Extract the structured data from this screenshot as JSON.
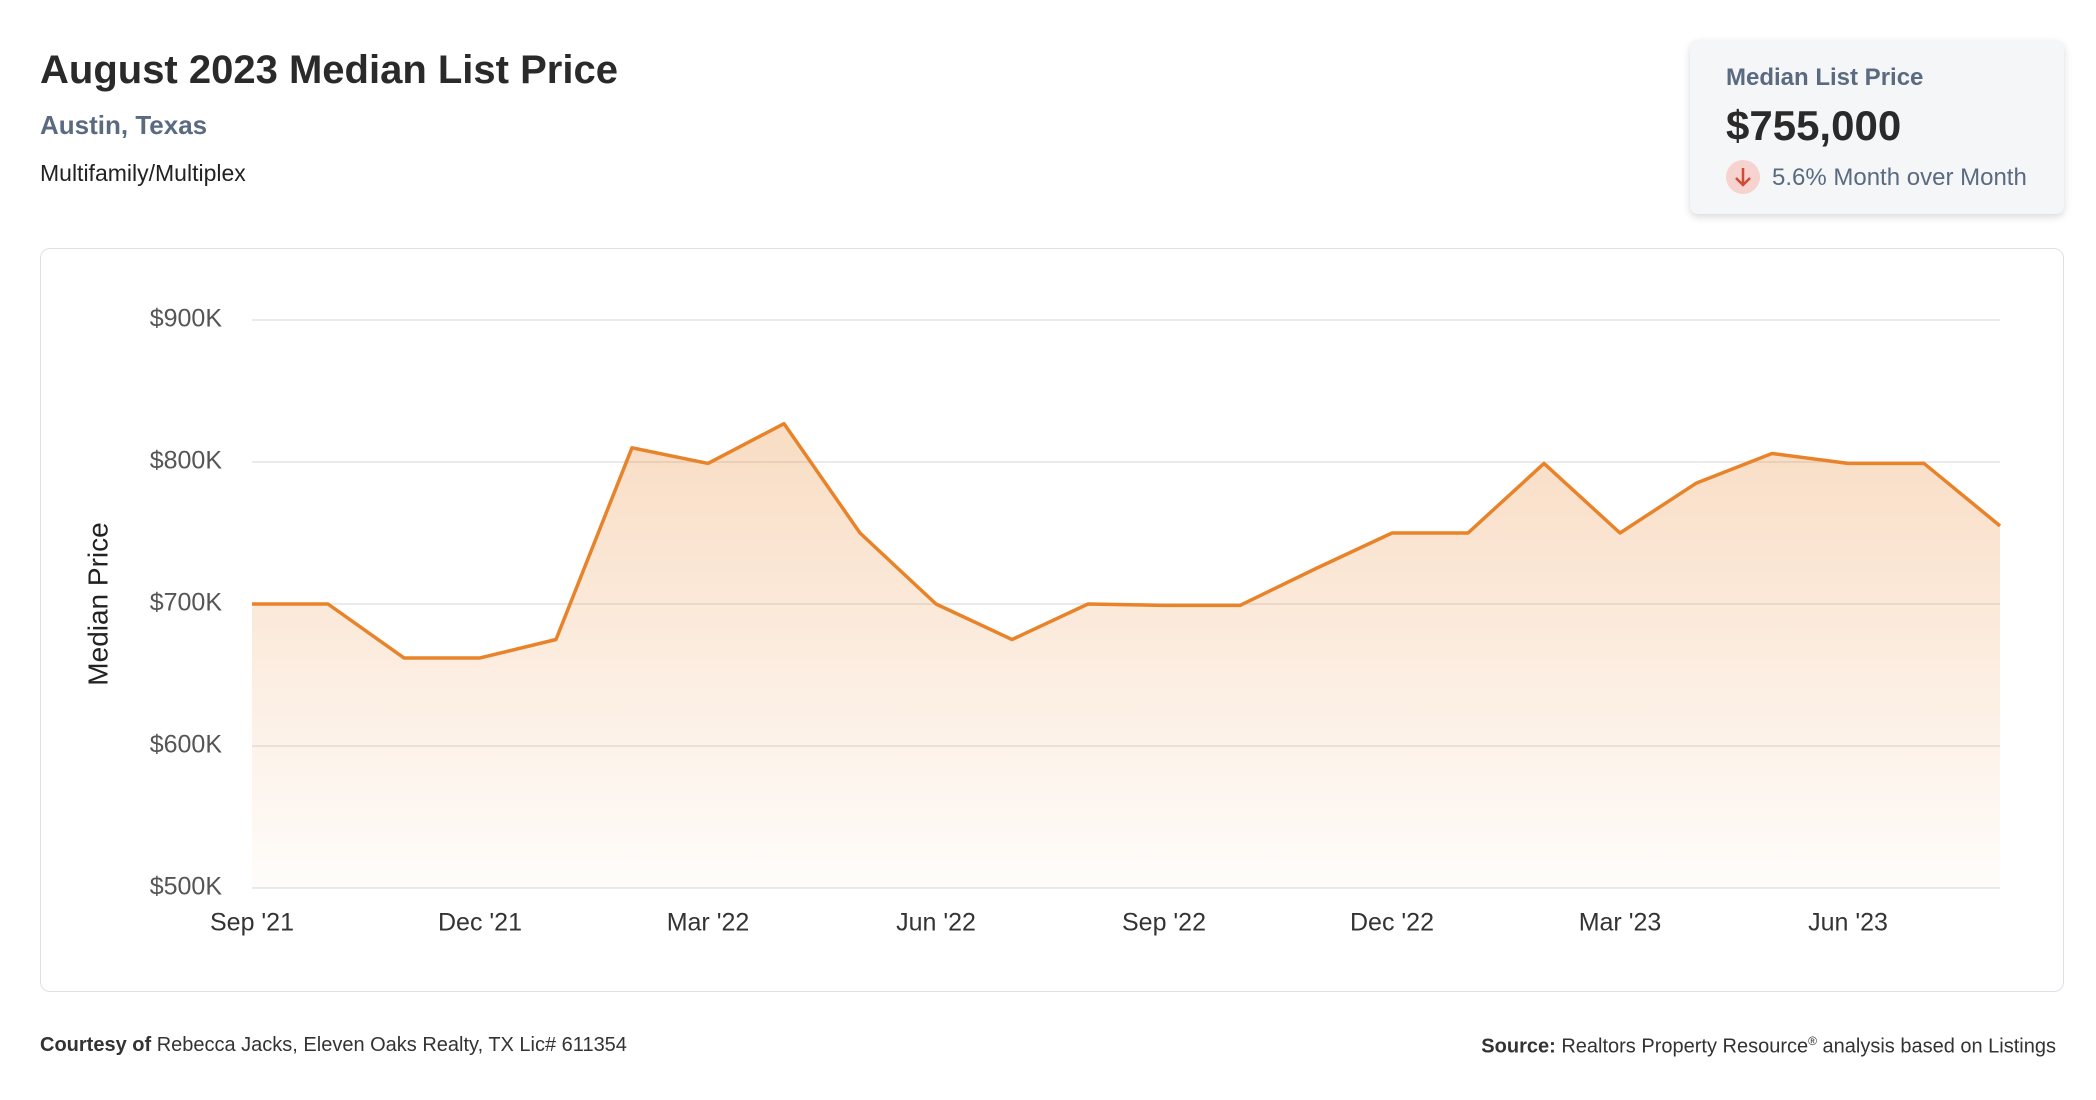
{
  "header": {
    "title": "August 2023 Median List Price",
    "location": "Austin, Texas",
    "property_type": "Multifamily/Multiplex"
  },
  "summary": {
    "label": "Median List Price",
    "value": "$755,000",
    "change": "5.6% Month over Month"
  },
  "chart_data": {
    "type": "line",
    "y_label": "Median Price",
    "categories": [
      "Sep '21",
      null,
      null,
      "Dec '21",
      null,
      null,
      "Mar '22",
      null,
      null,
      "Jun '22",
      null,
      null,
      "Sep '22",
      null,
      null,
      "Dec '22",
      null,
      null,
      "Mar '23",
      null,
      null,
      "Jun '23",
      null,
      null
    ],
    "values": [
      700000,
      700000,
      662000,
      662000,
      675000,
      810000,
      799000,
      827000,
      750000,
      700000,
      675000,
      700000,
      699000,
      699000,
      725000,
      750000,
      750000,
      799000,
      750000,
      785000,
      806000,
      799000,
      799000,
      755000
    ],
    "color": "#e8832a",
    "ylim": [
      500000,
      900000
    ],
    "yticks": [
      {
        "value": 500000,
        "label": "$500K"
      },
      {
        "value": 600000,
        "label": "$600K"
      },
      {
        "value": 700000,
        "label": "$700K"
      },
      {
        "value": 800000,
        "label": "$800K"
      },
      {
        "value": 900000,
        "label": "$900K"
      }
    ],
    "grid": true
  },
  "footer": {
    "courtesy_label": "Courtesy of",
    "courtesy": "Rebecca Jacks, Eleven Oaks Realty, TX Lic# 611354",
    "source_label": "Source:",
    "source": "Realtors Property Resource",
    "source_mark": "®",
    "source_rest": " analysis based on Listings"
  }
}
